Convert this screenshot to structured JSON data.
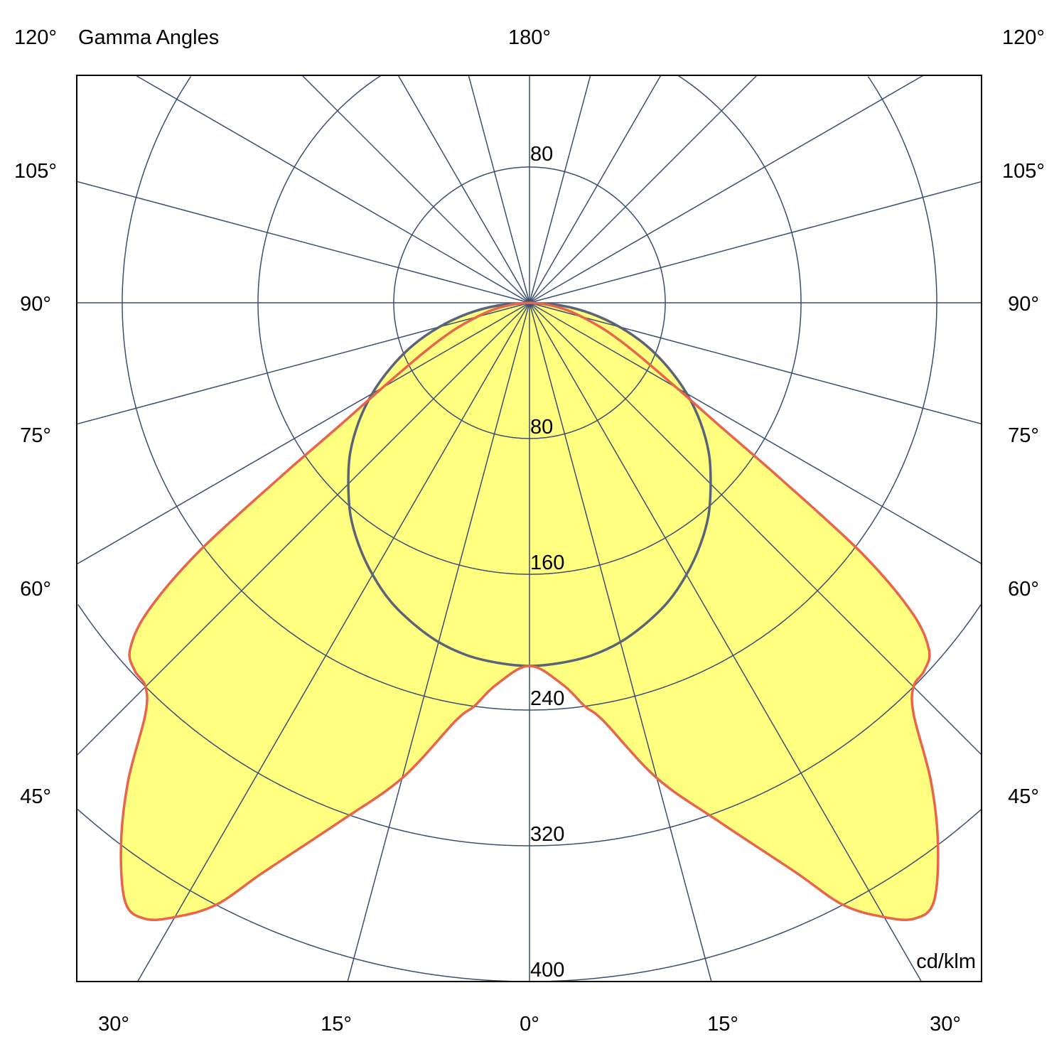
{
  "chart_data": {
    "type": "polar",
    "title": "Gamma Angles",
    "unit_label": "cd/klm",
    "radial_ticks": [
      80,
      160,
      240,
      320,
      400
    ],
    "radial_tick_labels": {
      "top": "80",
      "bottom": [
        "80",
        "160",
        "240",
        "320",
        "400"
      ]
    },
    "angle_labels": {
      "top": "180°",
      "left": [
        "120°",
        "105°",
        "90°",
        "75°",
        "60°",
        "45°"
      ],
      "right": [
        "120°",
        "105°",
        "90°",
        "75°",
        "60°",
        "45°"
      ],
      "bottom": [
        "30°",
        "15°",
        "0°",
        "15°",
        "30°"
      ]
    },
    "angle_step_deg": 15,
    "grid": true,
    "fill_color": "#FFFF80",
    "grid_color": "#3B4F73",
    "series": [
      {
        "plane": "C0-C180",
        "color": "#5A6478",
        "gamma": [
          0,
          5,
          10,
          15,
          20,
          25,
          30,
          35,
          40,
          45,
          50,
          55,
          60,
          65,
          70,
          75,
          80,
          85,
          90
        ],
        "intensity": [
          214,
          213,
          211,
          207,
          201,
          194,
          185,
          175,
          164,
          151,
          138,
          123,
          107,
          90,
          73,
          55,
          37,
          19,
          0
        ]
      },
      {
        "plane": "C90-C270",
        "color": "#E8644A",
        "gamma": [
          0,
          5,
          7.8,
          10,
          15,
          20,
          25,
          27.5,
          30,
          32,
          34,
          37,
          40,
          43,
          45,
          47,
          49,
          51,
          53,
          55,
          57,
          60,
          65,
          70,
          75,
          80,
          85,
          90
        ],
        "intensity": [
          214,
          226,
          240,
          250,
          290,
          325,
          370,
          400,
          418,
          428,
          426,
          400,
          368,
          332,
          320,
          318,
          312,
          290,
          245,
          180,
          135,
          100,
          68,
          48,
          32,
          20,
          8,
          0
        ]
      }
    ]
  }
}
